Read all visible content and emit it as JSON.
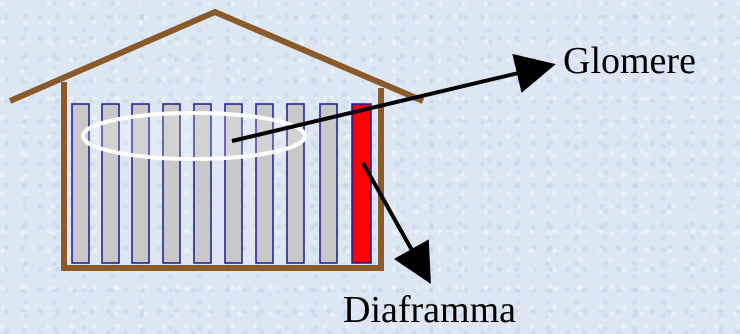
{
  "labels": {
    "glomere": "Glomere",
    "diaframma": "Diaframma"
  },
  "colors": {
    "background": "#dce7f3",
    "house_outline": "#8b5a2b",
    "bar_fill": "#c8c8c8",
    "bar_stroke": "#1a1a8c",
    "diaframma_bar_fill": "#ff0000",
    "glomere_ellipse": "#ffffff",
    "arrow": "#000000"
  }
}
